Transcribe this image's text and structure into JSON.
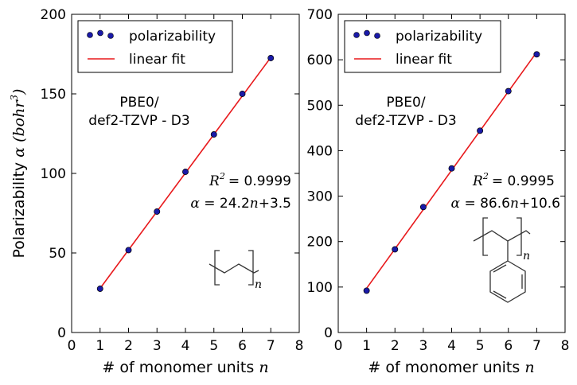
{
  "figure": {
    "ylabel_main": "Polarizability",
    "ylabel_symbol": "α",
    "ylabel_units": "(bohr",
    "ylabel_units_exp": "3",
    "ylabel_close": ")"
  },
  "chart_data": [
    {
      "type": "scatter",
      "xlabel_main": "# of monomer units",
      "xlabel_var": "n",
      "xlim": [
        0,
        8
      ],
      "ylim": [
        0,
        200
      ],
      "xticks": [
        "0",
        "1",
        "2",
        "3",
        "4",
        "5",
        "6",
        "7",
        "8"
      ],
      "yticks": [
        "0",
        "50",
        "100",
        "150",
        "200"
      ],
      "grid": false,
      "legend_position": "top-left",
      "legend": {
        "scatter_label": "polarizability",
        "line_label": "linear fit"
      },
      "method_line1": "PBE0/",
      "method_line2": "def2-TZVP - D3",
      "r2_label": "R",
      "r2_exp": "2",
      "r2_value": "= 0.9999",
      "fit_alpha": "α",
      "fit_eq_a": "= 24.2",
      "fit_n": "n",
      "fit_eq_b": "+3.5",
      "structure_subscript": "n",
      "points": {
        "x": [
          1,
          2,
          3,
          4,
          5,
          6,
          7
        ],
        "y": [
          27.5,
          51.8,
          76.0,
          101.0,
          124.5,
          150.0,
          172.5
        ]
      },
      "fit": {
        "slope": 24.2,
        "intercept": 3.5,
        "x_range": [
          1,
          7
        ]
      },
      "colors": {
        "points": "#1a1aa8",
        "line": "#e8191c"
      }
    },
    {
      "type": "scatter",
      "xlabel_main": "# of monomer units",
      "xlabel_var": "n",
      "xlim": [
        0,
        8
      ],
      "ylim": [
        0,
        700
      ],
      "xticks": [
        "0",
        "1",
        "2",
        "3",
        "4",
        "5",
        "6",
        "7",
        "8"
      ],
      "yticks": [
        "0",
        "100",
        "200",
        "300",
        "400",
        "500",
        "600",
        "700"
      ],
      "grid": false,
      "legend_position": "top-left",
      "legend": {
        "scatter_label": "polarizability",
        "line_label": "linear fit"
      },
      "method_line1": "PBE0/",
      "method_line2": "def2-TZVP - D3",
      "r2_label": "R",
      "r2_exp": "2",
      "r2_value": "= 0.9995",
      "fit_alpha": "α",
      "fit_eq_a": "= 86.6",
      "fit_n": "n",
      "fit_eq_b": "+10.6",
      "structure_subscript": "n",
      "points": {
        "x": [
          1,
          2,
          3,
          4,
          5,
          6,
          7
        ],
        "y": [
          92,
          183,
          276,
          361,
          444,
          531,
          612
        ]
      },
      "fit": {
        "slope": 86.6,
        "intercept": 10.6,
        "x_range": [
          1,
          7
        ]
      },
      "colors": {
        "points": "#1a1aa8",
        "line": "#e8191c"
      }
    }
  ]
}
